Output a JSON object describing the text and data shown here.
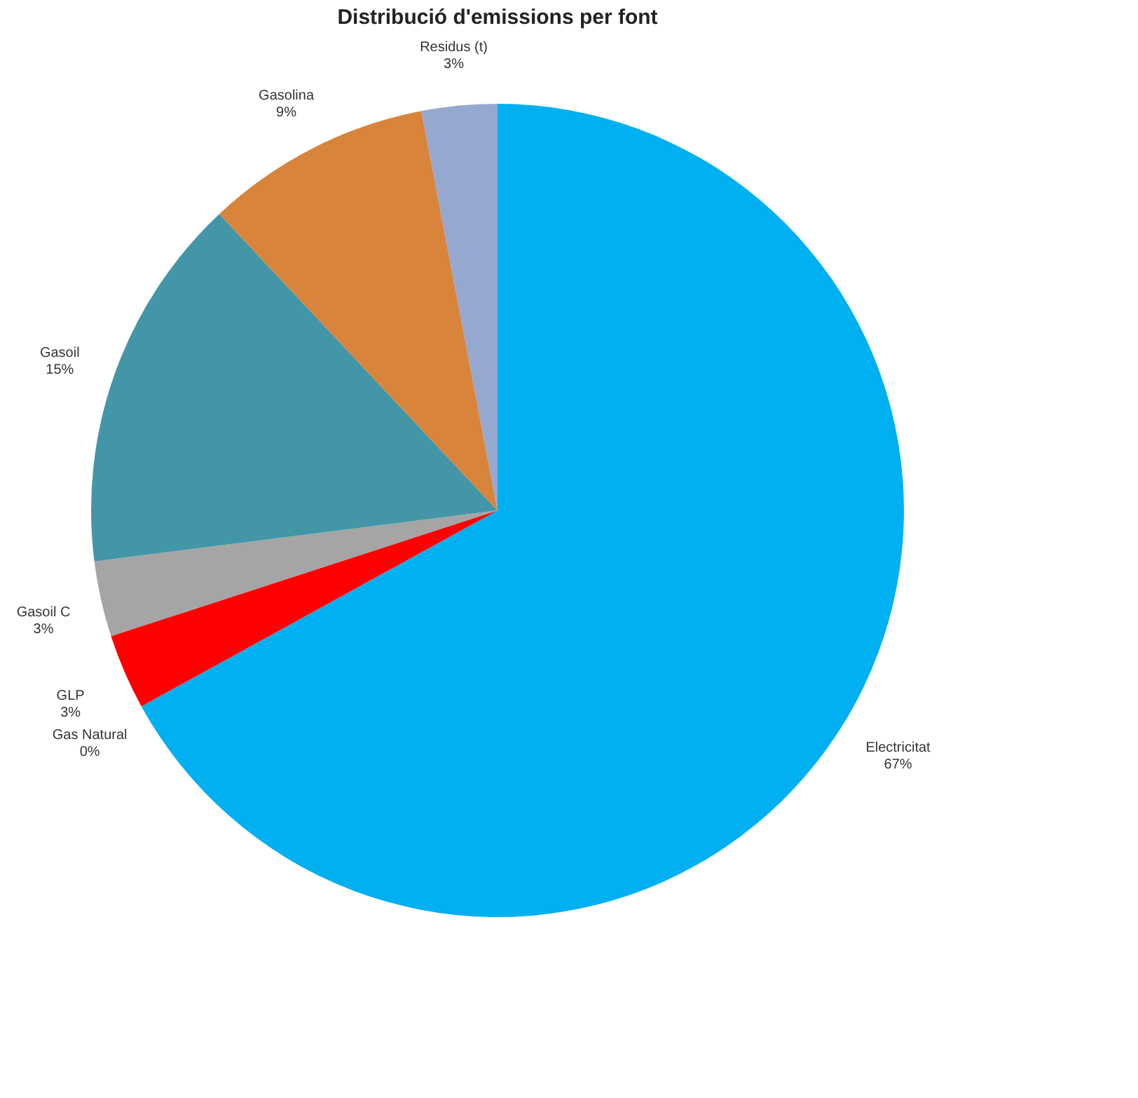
{
  "chart_data": {
    "type": "pie",
    "title": "Distribució d'emissions  per font",
    "categories": [
      "Electricitat",
      "Gas Natural",
      "GLP",
      "Gasoil C",
      "Gasoil",
      "Gasolina",
      "Residus (t)"
    ],
    "values": [
      67,
      0,
      3,
      3,
      15,
      9,
      3
    ],
    "value_labels": [
      "67%",
      "0%",
      "3%",
      "3%",
      "15%",
      "9%",
      "3%"
    ],
    "colors": [
      "#00b0f0",
      "#7f7f7f",
      "#ff0000",
      "#a5a5a5",
      "#4396a8",
      "#d9843b",
      "#95a8d0"
    ],
    "legend": false
  }
}
